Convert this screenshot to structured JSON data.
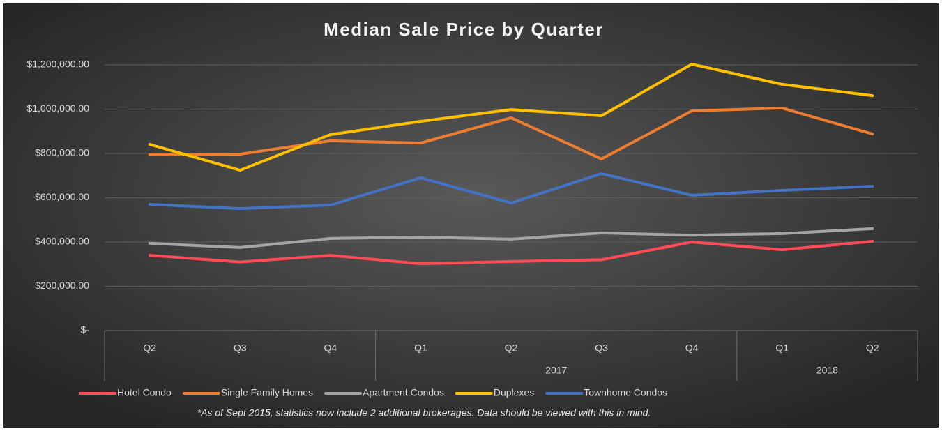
{
  "chart_data": {
    "type": "line",
    "title": "Median Sale Price by Quarter",
    "categories": [
      "Q2",
      "Q3",
      "Q4",
      "Q1",
      "Q2",
      "Q3",
      "Q4",
      "Q1",
      "Q2"
    ],
    "category_groups": [
      {
        "label": null,
        "count": 3
      },
      {
        "label": "2017",
        "count": 4
      },
      {
        "label": "2018",
        "count": 2
      }
    ],
    "series": [
      {
        "name": "Hotel Condo",
        "color": "#ff4b55",
        "values": [
          340000,
          310000,
          340000,
          302000,
          312000,
          320000,
          400000,
          365000,
          403000
        ]
      },
      {
        "name": "Single Family Homes",
        "color": "#ed7d31",
        "values": [
          794000,
          797000,
          857000,
          847000,
          961000,
          775000,
          992000,
          1005000,
          888000
        ]
      },
      {
        "name": "Apartment Condos",
        "color": "#a5a5a5",
        "values": [
          394000,
          375000,
          416000,
          422000,
          413000,
          441000,
          431000,
          438000,
          460000
        ]
      },
      {
        "name": "Duplexes",
        "color": "#ffc000",
        "values": [
          841000,
          724000,
          885000,
          945000,
          998000,
          970000,
          1203000,
          1112000,
          1061000
        ]
      },
      {
        "name": "Townhome Condos",
        "color": "#4472c4",
        "values": [
          570000,
          551000,
          567000,
          690000,
          576000,
          709000,
          611000,
          633000,
          652000
        ]
      }
    ],
    "ylim": [
      0,
      1200000
    ],
    "yticks": [
      {
        "value": 0,
        "label": "$-"
      },
      {
        "value": 200000,
        "label": "$200,000.00"
      },
      {
        "value": 400000,
        "label": "$400,000.00"
      },
      {
        "value": 600000,
        "label": "$600,000.00"
      },
      {
        "value": 800000,
        "label": "$800,000.00"
      },
      {
        "value": 1000000,
        "label": "$1,000,000.00"
      },
      {
        "value": 1200000,
        "label": "$1,200,000.00"
      }
    ],
    "grid": true,
    "legend": "bottom",
    "footnote": "*As of Sept 2015, statistics now include 2 additional brokerages. Data should be viewed with this in mind."
  }
}
